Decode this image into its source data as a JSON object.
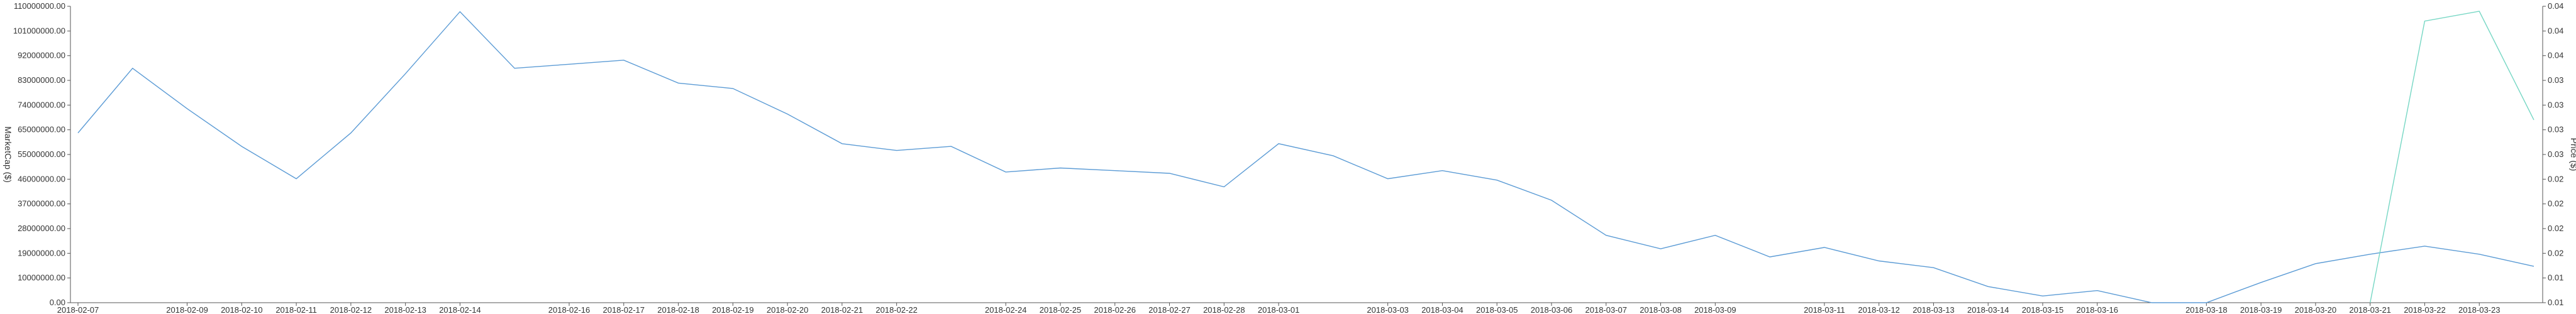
{
  "chart_data": {
    "type": "line",
    "x": [
      "2018-02-07",
      "2018-02-08",
      "2018-02-09",
      "2018-02-10",
      "2018-02-11",
      "2018-02-12",
      "2018-02-13",
      "2018-02-14",
      "2018-02-15",
      "2018-02-16",
      "2018-02-17",
      "2018-02-18",
      "2018-02-19",
      "2018-02-20",
      "2018-02-21",
      "2018-02-22",
      "2018-02-23",
      "2018-02-24",
      "2018-02-25",
      "2018-02-26",
      "2018-02-27",
      "2018-02-28",
      "2018-03-01",
      "2018-03-02",
      "2018-03-03",
      "2018-03-04",
      "2018-03-05",
      "2018-03-06",
      "2018-03-07",
      "2018-03-08",
      "2018-03-09",
      "2018-03-10",
      "2018-03-11",
      "2018-03-12",
      "2018-03-13",
      "2018-03-14",
      "2018-03-15",
      "2018-03-16",
      "2018-03-17",
      "2018-03-18",
      "2018-03-19",
      "2018-03-20",
      "2018-03-21",
      "2018-03-22",
      "2018-03-23",
      "2018-03-24"
    ],
    "x_tick_labels": [
      "2018-02-07",
      "2018-02-09",
      "2018-02-10",
      "2018-02-11",
      "2018-02-12",
      "2018-02-13",
      "2018-02-14",
      "2018-02-16",
      "2018-02-17",
      "2018-02-18",
      "2018-02-19",
      "2018-02-20",
      "2018-02-21",
      "2018-02-22",
      "2018-02-24",
      "2018-02-25",
      "2018-02-26",
      "2018-02-27",
      "2018-02-28",
      "2018-03-01",
      "2018-03-03",
      "2018-03-04",
      "2018-03-05",
      "2018-03-06",
      "2018-03-07",
      "2018-03-08",
      "2018-03-09",
      "2018-03-11",
      "2018-03-12",
      "2018-03-13",
      "2018-03-14",
      "2018-03-15",
      "2018-03-16",
      "2018-03-18",
      "2018-03-19",
      "2018-03-20",
      "2018-03-21",
      "2018-03-22",
      "2018-03-23"
    ],
    "y_left": {
      "label": "MarketCap ($)",
      "ticks": [
        "0.00",
        "10000000.00",
        "19000000.00",
        "28000000.00",
        "37000000.00",
        "46000000.00",
        "55000000.00",
        "65000000.00",
        "74000000.00",
        "83000000.00",
        "92000000.00",
        "101000000.00",
        "110000000.00"
      ],
      "range": [
        0,
        110000000
      ]
    },
    "y_right": {
      "label": "Price ($)",
      "ticks": [
        "0.01",
        "0.01",
        "0.02",
        "0.02",
        "0.02",
        "0.02",
        "0.03",
        "0.03",
        "0.03",
        "0.03",
        "0.04",
        "0.04",
        "0.04"
      ],
      "range": [
        0.01,
        0.04
      ]
    },
    "series": [
      {
        "axis": "left",
        "color": "#5b9bd5",
        "values": [
          63000000,
          87000000,
          72000000,
          58000000,
          46000000,
          63000000,
          85000000,
          108000000,
          87000000,
          88500000,
          90000000,
          81500000,
          79500000,
          70000000,
          59000000,
          56500000,
          58000000,
          48500000,
          50000000,
          49000000,
          48000000,
          43000000,
          59000000,
          54500000,
          46000000,
          49000000,
          45500000,
          38000000,
          25000000,
          20000000,
          25000000,
          17000000,
          20500000,
          15500000,
          13000000,
          6000000,
          2500000,
          4500000,
          0,
          0,
          7500000,
          14500000,
          18000000,
          21000000,
          18000000,
          13500000
        ]
      },
      {
        "axis": "right",
        "color": "#76d7c4",
        "values": [
          null,
          null,
          null,
          null,
          null,
          null,
          null,
          null,
          null,
          null,
          null,
          null,
          null,
          null,
          null,
          null,
          null,
          null,
          null,
          null,
          null,
          null,
          null,
          null,
          null,
          null,
          null,
          null,
          null,
          null,
          null,
          null,
          null,
          null,
          null,
          null,
          null,
          null,
          null,
          null,
          null,
          null,
          0.01,
          0.0385,
          0.0395,
          0.0285
        ]
      }
    ],
    "grid": false,
    "legend": "none"
  }
}
